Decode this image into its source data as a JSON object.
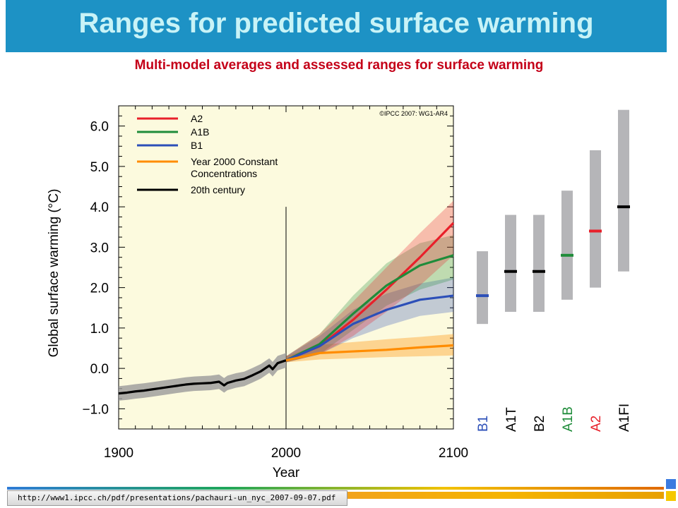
{
  "header": {
    "title": "Ranges for predicted surface warming"
  },
  "subtitle": "Multi-model averages and assessed ranges for surface warming",
  "footer": {
    "url": "http://www1.ipcc.ch/pdf/presentations/pachauri-un_nyc_2007-09-07.pdf"
  },
  "colors": {
    "A2": "#e8202a",
    "A1B": "#1f8c3a",
    "B1": "#2c4fb8",
    "const": "#ff8c00",
    "hist": "#000000",
    "gray": "#b5b5b8",
    "plot_bg": "#fcfade"
  },
  "chart_data": [
    {
      "type": "line",
      "xlabel": "Year",
      "ylabel": "Global surface warming (°C)",
      "xlim": [
        1900,
        2100
      ],
      "ylim": [
        -1.5,
        6.5
      ],
      "x_ticks": [
        "1900",
        "2000",
        "2100"
      ],
      "y_ticks": [
        "−1.0",
        "0.0",
        "1.0",
        "2.0",
        "3.0",
        "4.0",
        "5.0",
        "6.0"
      ],
      "credit": "©IPCC 2007: WG1-AR4",
      "legend_position": "top-left",
      "legend": [
        "A2",
        "A1B",
        "B1",
        "Year 2000 Constant Concentrations",
        "20th century"
      ],
      "series": [
        {
          "name": "20th century",
          "color": "#000000",
          "x": [
            1900,
            1905,
            1910,
            1915,
            1920,
            1925,
            1930,
            1935,
            1940,
            1945,
            1950,
            1955,
            1960,
            1963,
            1965,
            1970,
            1975,
            1980,
            1985,
            1990,
            1992,
            1995,
            2000
          ],
          "y": [
            -0.62,
            -0.6,
            -0.57,
            -0.55,
            -0.52,
            -0.49,
            -0.46,
            -0.43,
            -0.4,
            -0.38,
            -0.37,
            -0.36,
            -0.33,
            -0.42,
            -0.36,
            -0.3,
            -0.26,
            -0.17,
            -0.07,
            0.07,
            -0.02,
            0.13,
            0.2
          ],
          "band": [
            0.18
          ]
        },
        {
          "name": "A2",
          "color": "#e8202a",
          "x": [
            2000,
            2020,
            2040,
            2060,
            2080,
            2100
          ],
          "y": [
            0.2,
            0.55,
            1.2,
            1.95,
            2.75,
            3.6
          ],
          "lower": [
            0.15,
            0.35,
            0.8,
            1.4,
            2.05,
            2.8
          ],
          "upper": [
            0.3,
            0.85,
            1.65,
            2.5,
            3.35,
            4.15
          ]
        },
        {
          "name": "A1B",
          "color": "#1f8c3a",
          "x": [
            2000,
            2020,
            2040,
            2060,
            2080,
            2100
          ],
          "y": [
            0.2,
            0.6,
            1.35,
            2.05,
            2.55,
            2.8
          ],
          "lower": [
            0.15,
            0.35,
            0.95,
            1.55,
            1.95,
            2.2
          ],
          "upper": [
            0.3,
            0.85,
            1.8,
            2.6,
            3.1,
            3.3
          ]
        },
        {
          "name": "B1",
          "color": "#2c4fb8",
          "x": [
            2000,
            2020,
            2040,
            2060,
            2080,
            2100
          ],
          "y": [
            0.2,
            0.55,
            1.1,
            1.45,
            1.7,
            1.8
          ],
          "lower": [
            0.15,
            0.35,
            0.75,
            1.05,
            1.3,
            1.4
          ],
          "upper": [
            0.3,
            0.8,
            1.45,
            1.85,
            2.1,
            2.25
          ]
        },
        {
          "name": "Year 2000 Constant Concentrations",
          "color": "#ff8c00",
          "x": [
            2000,
            2020,
            2040,
            2060,
            2080,
            2100
          ],
          "y": [
            0.2,
            0.38,
            0.42,
            0.46,
            0.52,
            0.57
          ],
          "lower": [
            0.15,
            0.22,
            0.25,
            0.28,
            0.3,
            0.32
          ],
          "upper": [
            0.3,
            0.58,
            0.65,
            0.72,
            0.78,
            0.85
          ]
        }
      ]
    },
    {
      "type": "bar",
      "title": "",
      "categories": [
        "B1",
        "A1T",
        "B2",
        "A1B",
        "A2",
        "A1FI"
      ],
      "label_colors": [
        "#2c4fb8",
        "#000000",
        "#000000",
        "#1f8c3a",
        "#e8202a",
        "#000000"
      ],
      "best_estimate": [
        1.8,
        2.4,
        2.4,
        2.8,
        3.4,
        4.0
      ],
      "range_low": [
        1.1,
        1.4,
        1.4,
        1.7,
        2.0,
        2.4
      ],
      "range_high": [
        2.9,
        3.8,
        3.8,
        4.4,
        5.4,
        6.4
      ],
      "marker_colors": [
        "#2c4fb8",
        "#000000",
        "#000000",
        "#1f8c3a",
        "#e8202a",
        "#000000"
      ]
    }
  ]
}
